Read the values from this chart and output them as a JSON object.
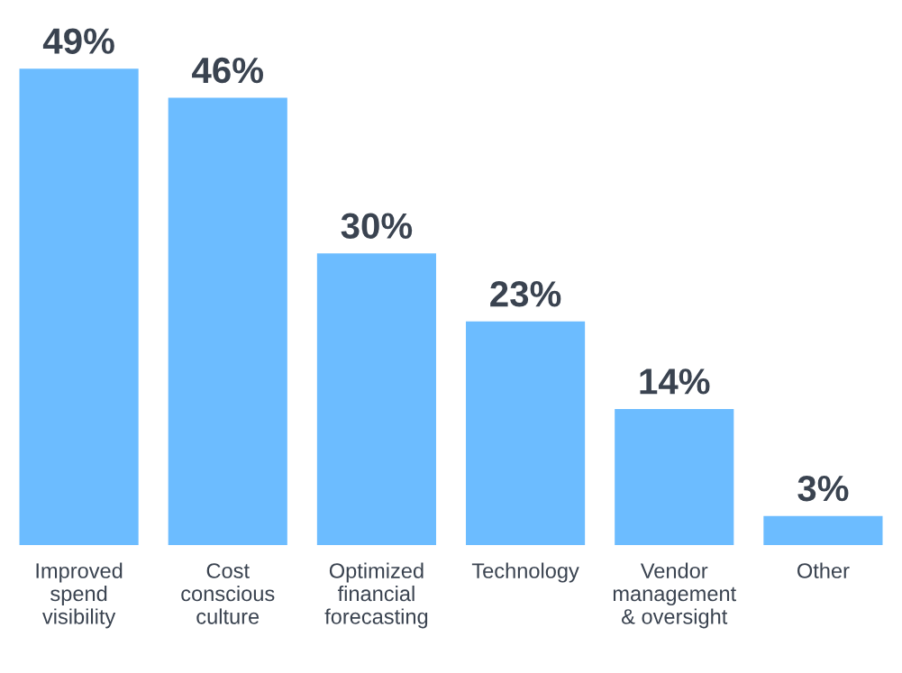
{
  "chart_data": {
    "type": "bar",
    "categories": [
      "Improved\nspend\nvisibility",
      "Cost\nconscious\nculture",
      "Optimized\nfinancial\nforecasting",
      "Technology",
      "Vendor\nmanagement\n& oversight",
      "Other"
    ],
    "values": [
      49,
      46,
      30,
      23,
      14,
      3
    ],
    "value_labels": [
      "49%",
      "46%",
      "30%",
      "23%",
      "14%",
      "3%"
    ],
    "color": "#6cbcff",
    "tick_labels": "x",
    "grid": false,
    "legend": false
  }
}
